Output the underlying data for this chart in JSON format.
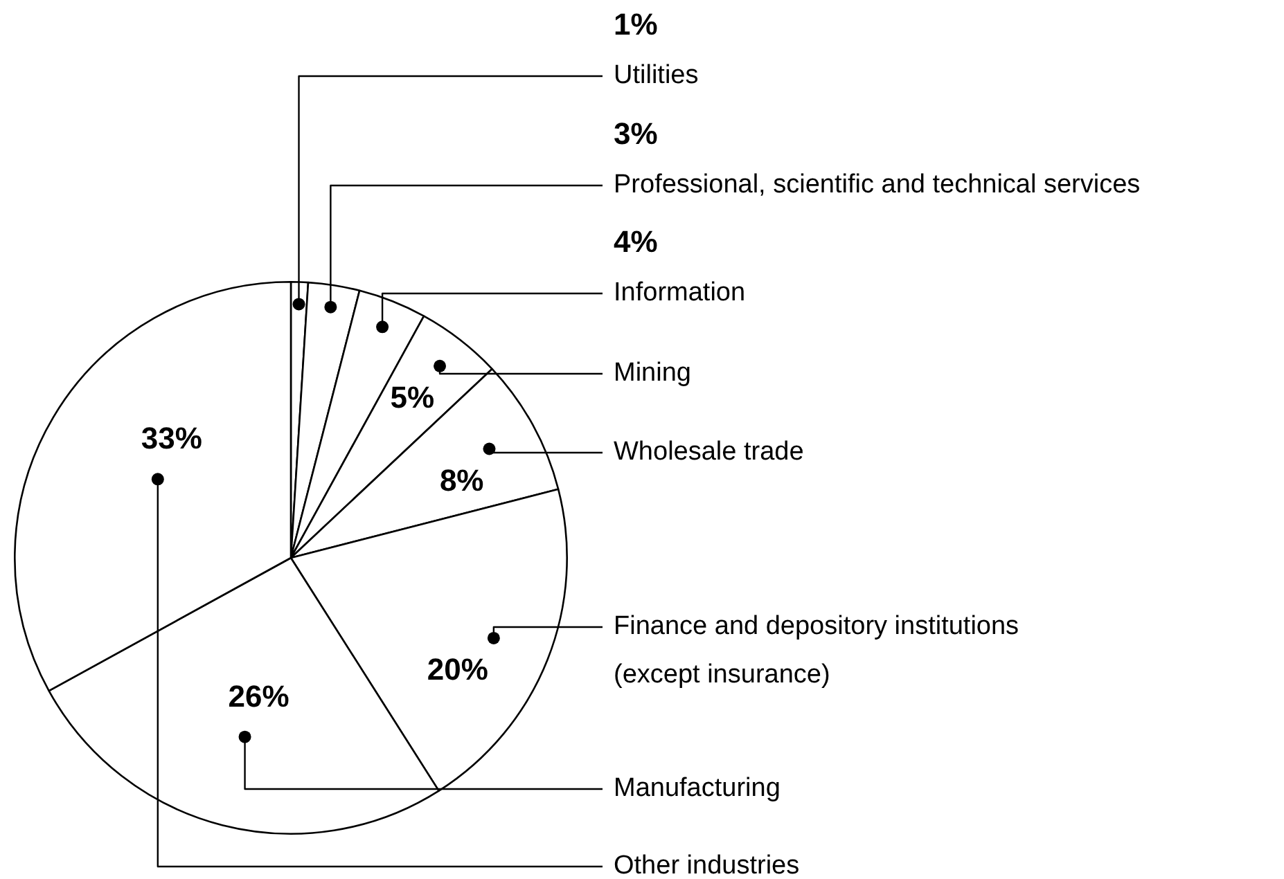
{
  "chart_data": {
    "type": "pie",
    "categories": [
      "Utilities",
      "Professional, scientific and technical services",
      "Information",
      "Mining",
      "Wholesale trade",
      "Finance and depository institutions\n(except insurance)",
      "Manufacturing",
      "Other industries"
    ],
    "values": [
      1,
      3,
      4,
      5,
      8,
      20,
      26,
      33
    ],
    "colors": [
      "#ffffff",
      "#ffffff",
      "#ffffff",
      "#ffffff",
      "#ffffff",
      "#ffffff",
      "#ffffff",
      "#ffffff"
    ],
    "value_labels": [
      "1%",
      "3%",
      "4%",
      "5%",
      "8%",
      "20%",
      "26%",
      "33%"
    ],
    "legend": false
  }
}
